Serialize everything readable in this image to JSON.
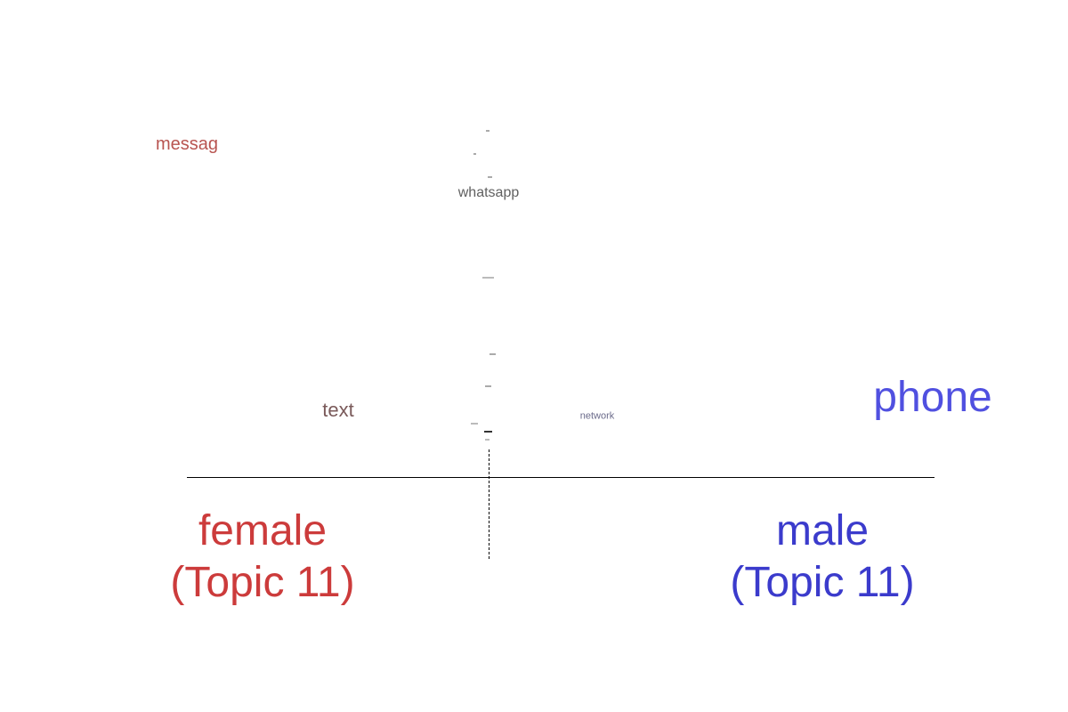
{
  "chart_data": {
    "type": "scatter",
    "description_kind": "comparison word cloud",
    "groups": [
      {
        "name": "female",
        "subtitle": "(Topic 11)",
        "color": "#cc3b3b"
      },
      {
        "name": "male",
        "subtitle": "(Topic 11)",
        "color": "#3b3bcc"
      }
    ],
    "words": [
      {
        "text": "messag",
        "score": -0.86,
        "weight": 20,
        "color": "#b85450"
      },
      {
        "text": "whatsapp",
        "score": 0.0,
        "weight": 16,
        "color": "#606060"
      },
      {
        "text": "text",
        "score": -0.5,
        "weight": 22,
        "color": "#7a5a5a"
      },
      {
        "text": "network",
        "score": 0.29,
        "weight": 11,
        "color": "#6a6a8a"
      },
      {
        "text": "phone",
        "score": 1.19,
        "weight": 48,
        "color": "#5050e0"
      }
    ]
  }
}
